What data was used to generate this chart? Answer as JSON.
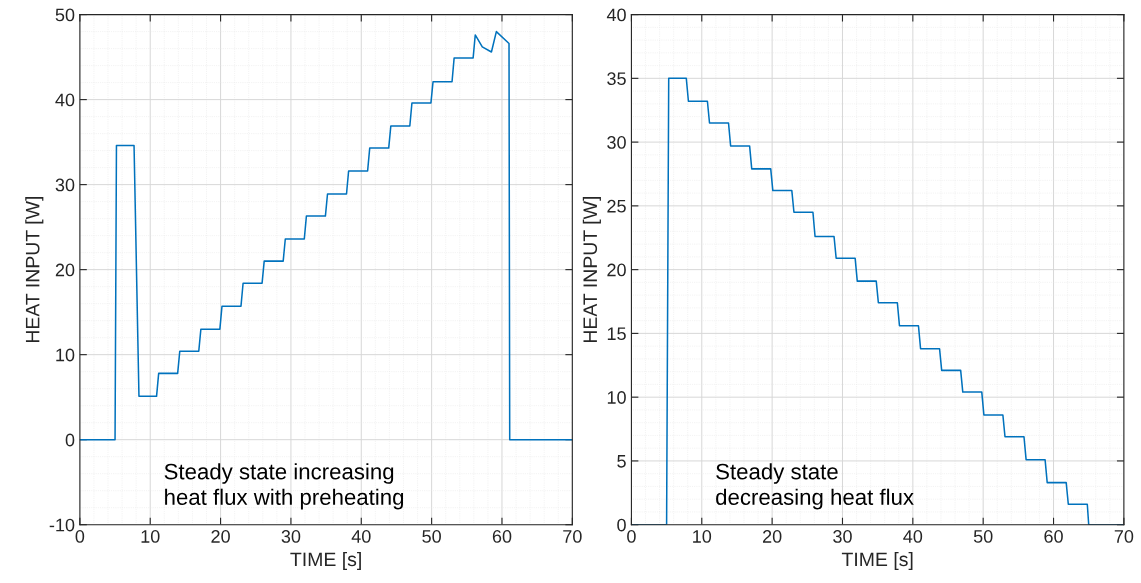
{
  "chart_data": [
    {
      "type": "line",
      "xlabel": "TIME [s]",
      "ylabel": "HEAT INPUT [W]",
      "xlim": [
        0,
        70
      ],
      "ylim": [
        -10,
        50
      ],
      "xticks": [
        0,
        10,
        20,
        30,
        40,
        50,
        60,
        70
      ],
      "yticks": [
        -10,
        0,
        10,
        20,
        30,
        40,
        50
      ],
      "grid": true,
      "annotations": [
        "Steady state increasing\nheat flux with preheating"
      ],
      "series": [
        {
          "color": "#0072bd",
          "x": [
            0,
            5,
            5.2,
            7.7,
            8.4,
            10.9,
            11.2,
            13.9,
            14.2,
            16.9,
            17.2,
            19.9,
            20.2,
            22.9,
            23.2,
            25.9,
            26.2,
            28.9,
            29.2,
            31.9,
            32.2,
            34.9,
            35.2,
            37.9,
            38.2,
            40.9,
            41.2,
            43.9,
            44.2,
            46.9,
            47.2,
            49.9,
            50.2,
            52.9,
            53.2,
            55.9,
            56.2,
            57.2,
            58.5,
            59.2,
            61.0,
            61.1,
            70
          ],
          "values": [
            0,
            0,
            34.6,
            34.6,
            5.1,
            5.1,
            7.8,
            7.8,
            10.4,
            10.4,
            13.0,
            13.0,
            15.7,
            15.7,
            18.4,
            18.4,
            21.0,
            21.0,
            23.6,
            23.6,
            26.3,
            26.3,
            28.9,
            28.9,
            31.6,
            31.6,
            34.3,
            34.3,
            36.9,
            36.9,
            39.6,
            39.6,
            42.1,
            42.1,
            44.9,
            44.9,
            47.6,
            46.2,
            45.6,
            48.0,
            46.6,
            0,
            0
          ]
        }
      ]
    },
    {
      "type": "line",
      "xlabel": "TIME [s]",
      "ylabel": "HEAT INPUT [W]",
      "xlim": [
        0,
        70
      ],
      "ylim": [
        0,
        40
      ],
      "xticks": [
        0,
        10,
        20,
        30,
        40,
        50,
        60,
        70
      ],
      "yticks": [
        0,
        5,
        10,
        15,
        20,
        25,
        30,
        35,
        40
      ],
      "grid": true,
      "annotations": [
        "Steady state\ndecreasing heat flux"
      ],
      "series": [
        {
          "color": "#0072bd",
          "x": [
            0,
            5,
            5.3,
            7.8,
            8.1,
            10.8,
            11.1,
            13.8,
            14.1,
            16.8,
            17.1,
            19.8,
            20.1,
            22.8,
            23.1,
            25.8,
            26.1,
            28.8,
            29.1,
            31.8,
            32.1,
            34.8,
            35.1,
            37.8,
            38.1,
            40.8,
            41.1,
            43.8,
            44.1,
            46.8,
            47.1,
            49.8,
            50.1,
            52.8,
            53.1,
            55.8,
            56.1,
            58.8,
            59.1,
            61.8,
            62.1,
            64.8,
            65.0,
            70
          ],
          "values": [
            0,
            0,
            35.0,
            35.0,
            33.2,
            33.2,
            31.5,
            31.5,
            29.7,
            29.7,
            27.9,
            27.9,
            26.2,
            26.2,
            24.5,
            24.5,
            22.6,
            22.6,
            20.9,
            20.9,
            19.1,
            19.1,
            17.4,
            17.4,
            15.6,
            15.6,
            13.8,
            13.8,
            12.1,
            12.1,
            10.4,
            10.4,
            8.6,
            8.6,
            6.9,
            6.9,
            5.1,
            5.1,
            3.3,
            3.3,
            1.6,
            1.6,
            0,
            0
          ]
        }
      ]
    }
  ]
}
